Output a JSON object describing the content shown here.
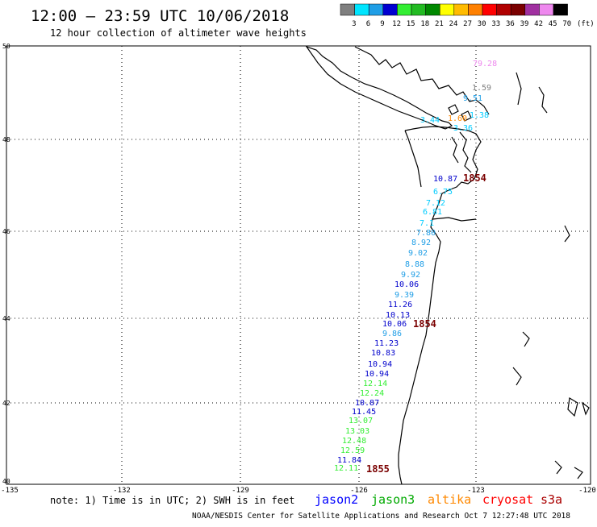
{
  "header": {
    "title": "12:00 – 23:59 UTC 10/06/2018",
    "subtitle": "12 hour collection of altimeter wave heights"
  },
  "colorbar": {
    "unit_label": "(ft)",
    "swatches": [
      {
        "label": "3",
        "color": "#7f7f7f"
      },
      {
        "label": "6",
        "color": "#00e5ff"
      },
      {
        "label": "9",
        "color": "#1f9ee6"
      },
      {
        "label": "12",
        "color": "#0000d0"
      },
      {
        "label": "15",
        "color": "#33ee33"
      },
      {
        "label": "18",
        "color": "#22bb22"
      },
      {
        "label": "21",
        "color": "#008800"
      },
      {
        "label": "24",
        "color": "#ffff00"
      },
      {
        "label": "27",
        "color": "#ffbb00"
      },
      {
        "label": "30",
        "color": "#ff8000"
      },
      {
        "label": "33",
        "color": "#ff0000"
      },
      {
        "label": "36",
        "color": "#b00000"
      },
      {
        "label": "39",
        "color": "#7a0000"
      },
      {
        "label": "42",
        "color": "#a030a0"
      },
      {
        "label": "45",
        "color": "#ee88ee"
      },
      {
        "label": "70",
        "color": "#000000"
      }
    ]
  },
  "axes": {
    "lon_ticks": [
      "-135",
      "-132",
      "-129",
      "-126",
      "-123",
      "-120"
    ],
    "lat_ticks": [
      "50",
      "48",
      "46",
      "44",
      "42",
      "40"
    ]
  },
  "satellites": [
    {
      "name": "jason2",
      "color": "#0000ff"
    },
    {
      "name": "jason3",
      "color": "#00aa00"
    },
    {
      "name": "altika",
      "color": "#ff8800"
    },
    {
      "name": "cryosat",
      "color": "#ff0000"
    },
    {
      "name": "s3a",
      "color": "#aa0000"
    }
  ],
  "note": "note: 1) Time is in UTC; 2) SWH is in feet",
  "footer": "NOAA/NESDIS Center for Satellite Applications and Research   Oct  7 12:27:48 UTC 2018",
  "observations": [
    {
      "text": "79.28",
      "color": "#ee88ee"
    },
    {
      "text": "1.59",
      "color": "#7f7f7f"
    },
    {
      "text": "9.51",
      "color": "#1f9ee6"
    },
    {
      "text": "1.38",
      "color": "#00ccff"
    },
    {
      "text": "1.60",
      "color": "#ff8800"
    },
    {
      "text": "3.44",
      "color": "#00ccff"
    },
    {
      "text": "3.36",
      "color": "#00ccff"
    },
    {
      "text": "10.87",
      "color": "#0000cc"
    },
    {
      "text": "1854",
      "color": "#7a0000"
    },
    {
      "text": "6.75",
      "color": "#00ccff"
    },
    {
      "text": "7.12",
      "color": "#00ccff"
    },
    {
      "text": "6.81",
      "color": "#00ccff"
    },
    {
      "text": "7.1",
      "color": "#00ccff"
    },
    {
      "text": "7.80",
      "color": "#1f9ee6"
    },
    {
      "text": "8.92",
      "color": "#1f9ee6"
    },
    {
      "text": "9.02",
      "color": "#1f9ee6"
    },
    {
      "text": "8.88",
      "color": "#1f9ee6"
    },
    {
      "text": "9.92",
      "color": "#1f9ee6"
    },
    {
      "text": "10.06",
      "color": "#0000cc"
    },
    {
      "text": "9.39",
      "color": "#1f9ee6"
    },
    {
      "text": "11.26",
      "color": "#0000cc"
    },
    {
      "text": "10.13",
      "color": "#0000cc"
    },
    {
      "text": "10.06",
      "color": "#0000cc"
    },
    {
      "text": "1854",
      "color": "#7a0000"
    },
    {
      "text": "9.86",
      "color": "#1f9ee6"
    },
    {
      "text": "11.23",
      "color": "#0000cc"
    },
    {
      "text": "10.83",
      "color": "#0000cc"
    },
    {
      "text": "10.94",
      "color": "#0000cc"
    },
    {
      "text": "10.94",
      "color": "#0000cc"
    },
    {
      "text": "12.14",
      "color": "#33ee33"
    },
    {
      "text": "12.24",
      "color": "#33ee33"
    },
    {
      "text": "10.87",
      "color": "#0000cc"
    },
    {
      "text": "11.45",
      "color": "#0000cc"
    },
    {
      "text": "13.07",
      "color": "#33ee33"
    },
    {
      "text": "13.03",
      "color": "#33ee33"
    },
    {
      "text": "12.48",
      "color": "#33ee33"
    },
    {
      "text": "12.59",
      "color": "#33ee33"
    },
    {
      "text": "11.84",
      "color": "#0000cc"
    },
    {
      "text": "12.11",
      "color": "#33ee33"
    },
    {
      "text": "1855",
      "color": "#7a0000"
    }
  ]
}
